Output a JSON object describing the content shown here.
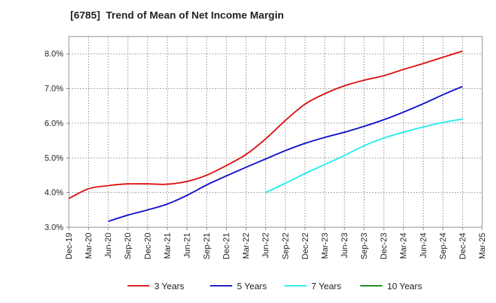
{
  "chart_data": {
    "type": "line",
    "title": "[6785]  Trend of Mean of Net Income Margin",
    "xlabel": "",
    "ylabel": "",
    "x": [
      "Dec-19",
      "Mar-20",
      "Jun-20",
      "Sep-20",
      "Dec-20",
      "Mar-21",
      "Jun-21",
      "Sep-21",
      "Dec-21",
      "Mar-22",
      "Jun-22",
      "Sep-22",
      "Dec-22",
      "Mar-23",
      "Jun-23",
      "Sep-23",
      "Dec-23",
      "Mar-24",
      "Jun-24",
      "Sep-24",
      "Dec-24",
      "Mar-25"
    ],
    "ylim": [
      3.0,
      8.5
    ],
    "yticks": [
      3.0,
      4.0,
      5.0,
      6.0,
      7.0,
      8.0
    ],
    "ytick_labels": [
      "3.0%",
      "4.0%",
      "5.0%",
      "6.0%",
      "7.0%",
      "8.0%"
    ],
    "grid": true,
    "legend_position": "bottom",
    "series": [
      {
        "name": "3 Years",
        "color": "#dd1111",
        "values": [
          3.83,
          4.11,
          4.2,
          4.25,
          4.25,
          4.24,
          4.32,
          4.5,
          4.78,
          5.1,
          5.55,
          6.08,
          6.55,
          6.85,
          7.08,
          7.24,
          7.37,
          7.55,
          7.72,
          7.9,
          8.08,
          null
        ]
      },
      {
        "name": "5 Years",
        "color": "#1111cc",
        "values": [
          null,
          null,
          3.17,
          3.35,
          3.5,
          3.67,
          3.92,
          4.22,
          4.48,
          4.73,
          4.97,
          5.21,
          5.42,
          5.59,
          5.74,
          5.91,
          6.1,
          6.32,
          6.56,
          6.82,
          7.06,
          null
        ]
      },
      {
        "name": "7 Years",
        "color": "#22eeee",
        "values": [
          null,
          null,
          null,
          null,
          null,
          null,
          null,
          null,
          null,
          null,
          4.0,
          4.27,
          4.55,
          4.81,
          5.07,
          5.35,
          5.57,
          5.74,
          5.89,
          6.02,
          6.12,
          null
        ]
      },
      {
        "name": "10 Years",
        "color": "#118811",
        "values": [
          null,
          null,
          null,
          null,
          null,
          null,
          null,
          null,
          null,
          null,
          null,
          null,
          null,
          null,
          null,
          null,
          null,
          null,
          null,
          null,
          null,
          null
        ]
      }
    ]
  }
}
